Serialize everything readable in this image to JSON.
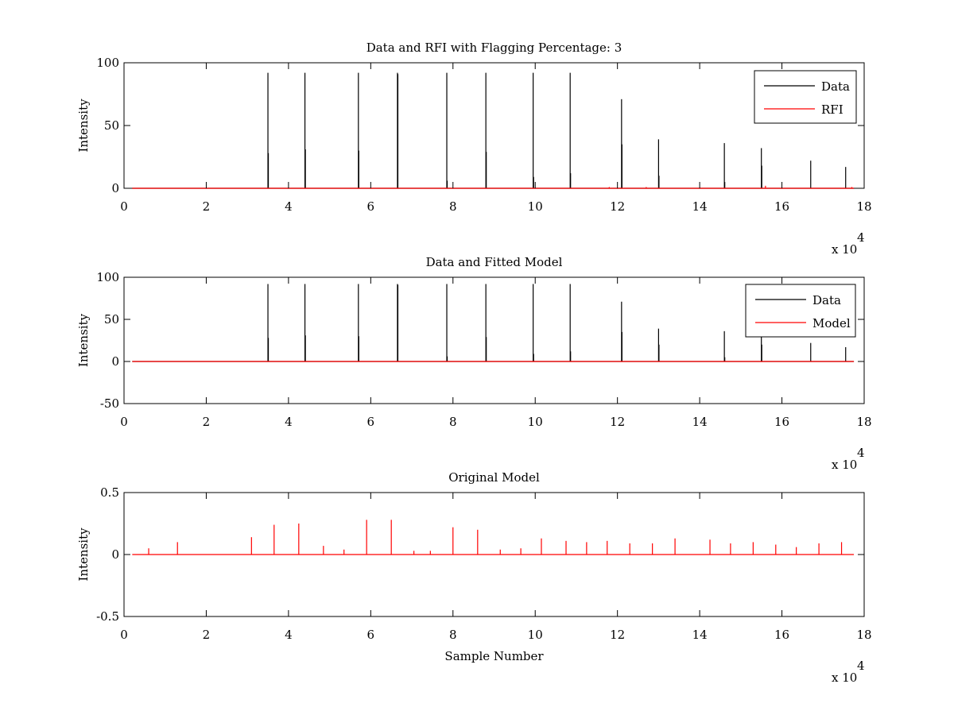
{
  "figure": {
    "background": "#ffffff",
    "exponent_label": "x 10",
    "exponent_power": "4"
  },
  "chart_data": [
    {
      "type": "line",
      "title": "Data and RFI with Flagging Percentage: 3",
      "xlabel": "",
      "ylabel": "Intensity",
      "xlim": [
        0,
        180000
      ],
      "ylim": [
        0,
        100
      ],
      "xticks": [
        "0",
        "2",
        "4",
        "6",
        "8",
        "10",
        "12",
        "14",
        "16",
        "18"
      ],
      "yticks": [
        "0",
        "50",
        "100"
      ],
      "grid": false,
      "legend_position": "top-right",
      "series": [
        {
          "name": "Data",
          "color": "#000000",
          "baseline": 0,
          "peaks": [
            [
              35000,
              92
            ],
            [
              35100,
              28
            ],
            [
              44000,
              92
            ],
            [
              44100,
              31
            ],
            [
              57000,
              92
            ],
            [
              57100,
              30
            ],
            [
              66500,
              92
            ],
            [
              66600,
              91
            ],
            [
              78500,
              92
            ],
            [
              78600,
              6
            ],
            [
              88000,
              92
            ],
            [
              88100,
              29
            ],
            [
              99500,
              92
            ],
            [
              99600,
              9
            ],
            [
              108500,
              92
            ],
            [
              108600,
              12
            ],
            [
              121000,
              71
            ],
            [
              121100,
              35
            ],
            [
              130000,
              39
            ],
            [
              130100,
              10
            ],
            [
              146000,
              36
            ],
            [
              146100,
              5
            ],
            [
              155000,
              32
            ],
            [
              155100,
              18
            ],
            [
              167000,
              22
            ],
            [
              175500,
              17
            ]
          ]
        },
        {
          "name": "RFI",
          "color": "#ff0000",
          "baseline": 0,
          "peaks": [
            [
              118000,
              1
            ],
            [
              127000,
              1
            ],
            [
              156000,
              2
            ],
            [
              177000,
              1
            ]
          ]
        }
      ]
    },
    {
      "type": "line",
      "title": "Data and Fitted Model",
      "xlabel": "",
      "ylabel": "Intensity",
      "xlim": [
        0,
        180000
      ],
      "ylim": [
        -50,
        100
      ],
      "xticks": [
        "0",
        "2",
        "4",
        "6",
        "8",
        "10",
        "12",
        "14",
        "16",
        "18"
      ],
      "yticks": [
        "-50",
        "0",
        "50",
        "100"
      ],
      "grid": false,
      "legend_position": "top-right",
      "series": [
        {
          "name": "Data",
          "color": "#000000",
          "baseline": 0,
          "peaks": [
            [
              35000,
              92
            ],
            [
              35100,
              28
            ],
            [
              44000,
              92
            ],
            [
              44100,
              31
            ],
            [
              57000,
              92
            ],
            [
              57100,
              30
            ],
            [
              66500,
              92
            ],
            [
              66600,
              91
            ],
            [
              78500,
              92
            ],
            [
              78600,
              6
            ],
            [
              88000,
              92
            ],
            [
              88100,
              29
            ],
            [
              99500,
              92
            ],
            [
              99600,
              9
            ],
            [
              108500,
              92
            ],
            [
              108600,
              12
            ],
            [
              121000,
              71
            ],
            [
              121100,
              35
            ],
            [
              130000,
              39
            ],
            [
              130100,
              20
            ],
            [
              146000,
              36
            ],
            [
              146100,
              5
            ],
            [
              155000,
              32
            ],
            [
              155100,
              20
            ],
            [
              167000,
              22
            ],
            [
              175500,
              17
            ]
          ]
        },
        {
          "name": "Model",
          "color": "#ff0000",
          "baseline": 0,
          "peaks": []
        }
      ]
    },
    {
      "type": "line",
      "title": "Original Model",
      "xlabel": "Sample Number",
      "ylabel": "Intensity",
      "xlim": [
        0,
        180000
      ],
      "ylim": [
        -0.5,
        0.5
      ],
      "xticks": [
        "0",
        "2",
        "4",
        "6",
        "8",
        "10",
        "12",
        "14",
        "16",
        "18"
      ],
      "yticks": [
        "-0.5",
        "0",
        "0.5"
      ],
      "grid": false,
      "legend_position": "none",
      "series": [
        {
          "color": "#ff0000",
          "baseline": 0,
          "peaks": [
            [
              6000,
              0.05
            ],
            [
              13000,
              0.1
            ],
            [
              31000,
              0.14
            ],
            [
              36500,
              0.24
            ],
            [
              42500,
              0.25
            ],
            [
              48500,
              0.07
            ],
            [
              53500,
              0.04
            ],
            [
              59000,
              0.28
            ],
            [
              65000,
              0.28
            ],
            [
              70500,
              0.03
            ],
            [
              74500,
              0.03
            ],
            [
              80000,
              0.22
            ],
            [
              86000,
              0.2
            ],
            [
              91500,
              0.04
            ],
            [
              96500,
              0.05
            ],
            [
              101500,
              0.13
            ],
            [
              107500,
              0.11
            ],
            [
              112500,
              0.1
            ],
            [
              117500,
              0.11
            ],
            [
              123000,
              0.09
            ],
            [
              128500,
              0.09
            ],
            [
              134000,
              0.13
            ],
            [
              142500,
              0.12
            ],
            [
              147500,
              0.09
            ],
            [
              153000,
              0.1
            ],
            [
              158500,
              0.08
            ],
            [
              163500,
              0.06
            ],
            [
              169000,
              0.09
            ],
            [
              174500,
              0.1
            ]
          ]
        }
      ]
    }
  ]
}
